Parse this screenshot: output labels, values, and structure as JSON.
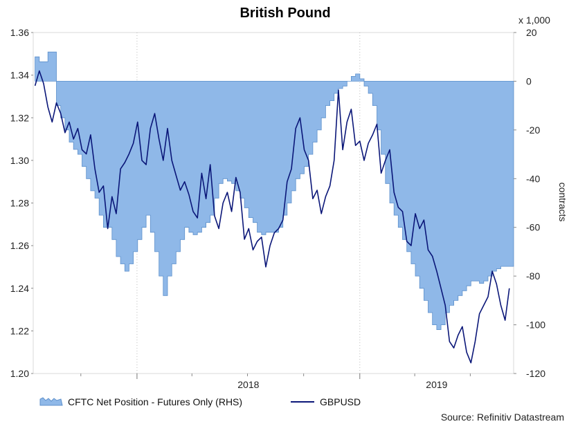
{
  "chart_data": {
    "type": "line",
    "title": "British Pound",
    "source": "Source: Refinitiv Datastream",
    "right_axis_unit": "x 1,000",
    "right_axis_label": "contracts",
    "left_ylim": [
      1.2,
      1.36
    ],
    "right_ylim": [
      -120,
      20
    ],
    "left_ticks": [
      "1.36",
      "1.34",
      "1.32",
      "1.30",
      "1.28",
      "1.26",
      "1.24",
      "1.22",
      "1.20"
    ],
    "right_ticks": [
      "20",
      "0",
      "-20",
      "-40",
      "-60",
      "-80",
      "-100",
      "-120"
    ],
    "x_labels": [
      "2018",
      "2019"
    ],
    "xlim": [
      "2017-07-15",
      "2019-09-10"
    ],
    "x_label_dates": [
      "2018-01-01",
      "2019-01-01"
    ],
    "x_tick_dates": [
      "2017-10-01",
      "2018-04-01",
      "2018-07-01",
      "2018-10-01",
      "2019-04-01",
      "2019-07-01"
    ],
    "grid": true,
    "legend_position": "bottom-left",
    "series": [
      {
        "name": "CFTC Net Position - Futures Only (RHS)",
        "kind": "area",
        "axis": "right",
        "color": "#8FB8E8",
        "edge_color": "#5C8FCB",
        "x": [
          "2017-07-18",
          "2017-07-25",
          "2017-08-01",
          "2017-08-08",
          "2017-08-15",
          "2017-08-22",
          "2017-08-29",
          "2017-09-05",
          "2017-09-12",
          "2017-09-19",
          "2017-09-26",
          "2017-10-03",
          "2017-10-10",
          "2017-10-17",
          "2017-10-24",
          "2017-10-31",
          "2017-11-07",
          "2017-11-14",
          "2017-11-21",
          "2017-11-28",
          "2017-12-05",
          "2017-12-12",
          "2017-12-19",
          "2017-12-26",
          "2018-01-02",
          "2018-01-09",
          "2018-01-16",
          "2018-01-23",
          "2018-01-30",
          "2018-02-06",
          "2018-02-13",
          "2018-02-20",
          "2018-02-27",
          "2018-03-06",
          "2018-03-13",
          "2018-03-20",
          "2018-03-27",
          "2018-04-03",
          "2018-04-10",
          "2018-04-17",
          "2018-04-24",
          "2018-05-01",
          "2018-05-08",
          "2018-05-15",
          "2018-05-22",
          "2018-05-29",
          "2018-06-05",
          "2018-06-12",
          "2018-06-19",
          "2018-06-26",
          "2018-07-03",
          "2018-07-10",
          "2018-07-17",
          "2018-07-24",
          "2018-07-31",
          "2018-08-07",
          "2018-08-14",
          "2018-08-21",
          "2018-08-28",
          "2018-09-04",
          "2018-09-11",
          "2018-09-18",
          "2018-09-25",
          "2018-10-02",
          "2018-10-09",
          "2018-10-16",
          "2018-10-23",
          "2018-10-30",
          "2018-11-06",
          "2018-11-13",
          "2018-11-20",
          "2018-11-27",
          "2018-12-04",
          "2018-12-11",
          "2018-12-18",
          "2018-12-25",
          "2019-01-01",
          "2019-01-08",
          "2019-01-15",
          "2019-01-22",
          "2019-01-29",
          "2019-02-05",
          "2019-02-12",
          "2019-02-19",
          "2019-02-26",
          "2019-03-05",
          "2019-03-12",
          "2019-03-19",
          "2019-03-26",
          "2019-04-02",
          "2019-04-09",
          "2019-04-16",
          "2019-04-23",
          "2019-04-30",
          "2019-05-07",
          "2019-05-14",
          "2019-05-21",
          "2019-05-28",
          "2019-06-04",
          "2019-06-11",
          "2019-06-18",
          "2019-06-25",
          "2019-07-02",
          "2019-07-09",
          "2019-07-16",
          "2019-07-23",
          "2019-07-30",
          "2019-08-06",
          "2019-08-13",
          "2019-08-20",
          "2019-08-27",
          "2019-09-03"
        ],
        "values": [
          10,
          8,
          8,
          12,
          12,
          -10,
          -15,
          -20,
          -25,
          -28,
          -30,
          -35,
          -40,
          -45,
          -48,
          -55,
          -60,
          -60,
          -65,
          -72,
          -75,
          -78,
          -75,
          -70,
          -65,
          -60,
          -55,
          -62,
          -70,
          -80,
          -88,
          -80,
          -75,
          -70,
          -65,
          -60,
          -62,
          -63,
          -62,
          -60,
          -58,
          -55,
          -48,
          -42,
          -40,
          -41,
          -42,
          -45,
          -48,
          -52,
          -56,
          -58,
          -62,
          -63,
          -62,
          -62,
          -62,
          -60,
          -55,
          -50,
          -45,
          -40,
          -38,
          -35,
          -30,
          -25,
          -20,
          -15,
          -10,
          -8,
          -5,
          -3,
          -2,
          0,
          2,
          3,
          1,
          -2,
          -5,
          -10,
          -20,
          -30,
          -42,
          -50,
          -55,
          -60,
          -65,
          -70,
          -75,
          -80,
          -85,
          -90,
          -95,
          -100,
          -102,
          -100,
          -95,
          -92,
          -90,
          -88,
          -86,
          -84,
          -82,
          -82,
          -83,
          -82,
          -80,
          -78,
          -77,
          -76,
          -76,
          -76
        ]
      },
      {
        "name": "GBPUSD",
        "kind": "line",
        "axis": "left",
        "color": "#0A1678",
        "x": [
          "2017-07-18",
          "2017-07-25",
          "2017-08-01",
          "2017-08-08",
          "2017-08-15",
          "2017-08-22",
          "2017-08-29",
          "2017-09-05",
          "2017-09-12",
          "2017-09-19",
          "2017-09-26",
          "2017-10-03",
          "2017-10-10",
          "2017-10-17",
          "2017-10-24",
          "2017-10-31",
          "2017-11-07",
          "2017-11-14",
          "2017-11-21",
          "2017-11-28",
          "2017-12-05",
          "2017-12-12",
          "2017-12-19",
          "2017-12-26",
          "2018-01-02",
          "2018-01-09",
          "2018-01-16",
          "2018-01-23",
          "2018-01-30",
          "2018-02-06",
          "2018-02-13",
          "2018-02-20",
          "2018-02-27",
          "2018-03-06",
          "2018-03-13",
          "2018-03-20",
          "2018-03-27",
          "2018-04-03",
          "2018-04-10",
          "2018-04-17",
          "2018-04-24",
          "2018-05-01",
          "2018-05-08",
          "2018-05-15",
          "2018-05-22",
          "2018-05-29",
          "2018-06-05",
          "2018-06-12",
          "2018-06-19",
          "2018-06-26",
          "2018-07-03",
          "2018-07-10",
          "2018-07-17",
          "2018-07-24",
          "2018-07-31",
          "2018-08-07",
          "2018-08-14",
          "2018-08-21",
          "2018-08-28",
          "2018-09-04",
          "2018-09-11",
          "2018-09-18",
          "2018-09-25",
          "2018-10-02",
          "2018-10-09",
          "2018-10-16",
          "2018-10-23",
          "2018-10-30",
          "2018-11-06",
          "2018-11-13",
          "2018-11-20",
          "2018-11-27",
          "2018-12-04",
          "2018-12-11",
          "2018-12-18",
          "2018-12-25",
          "2019-01-01",
          "2019-01-08",
          "2019-01-15",
          "2019-01-22",
          "2019-01-29",
          "2019-02-05",
          "2019-02-12",
          "2019-02-19",
          "2019-02-26",
          "2019-03-05",
          "2019-03-12",
          "2019-03-19",
          "2019-03-26",
          "2019-04-02",
          "2019-04-09",
          "2019-04-16",
          "2019-04-23",
          "2019-04-30",
          "2019-05-07",
          "2019-05-14",
          "2019-05-21",
          "2019-05-28",
          "2019-06-04",
          "2019-06-11",
          "2019-06-18",
          "2019-06-25",
          "2019-07-02",
          "2019-07-09",
          "2019-07-16",
          "2019-07-23",
          "2019-07-30",
          "2019-08-06",
          "2019-08-13",
          "2019-08-20",
          "2019-08-27",
          "2019-09-03"
        ],
        "values": [
          1.335,
          1.342,
          1.336,
          1.325,
          1.318,
          1.327,
          1.322,
          1.313,
          1.318,
          1.31,
          1.315,
          1.305,
          1.303,
          1.312,
          1.296,
          1.285,
          1.288,
          1.268,
          1.283,
          1.275,
          1.296,
          1.299,
          1.303,
          1.308,
          1.318,
          1.3,
          1.298,
          1.315,
          1.322,
          1.31,
          1.3,
          1.315,
          1.3,
          1.293,
          1.286,
          1.29,
          1.284,
          1.276,
          1.273,
          1.294,
          1.282,
          1.298,
          1.274,
          1.268,
          1.28,
          1.285,
          1.276,
          1.292,
          1.285,
          1.263,
          1.268,
          1.258,
          1.262,
          1.264,
          1.25,
          1.26,
          1.266,
          1.268,
          1.272,
          1.29,
          1.296,
          1.315,
          1.32,
          1.305,
          1.3,
          1.282,
          1.286,
          1.275,
          1.283,
          1.288,
          1.3,
          1.333,
          1.305,
          1.318,
          1.324,
          1.307,
          1.309,
          1.3,
          1.308,
          1.312,
          1.317,
          1.294,
          1.3,
          1.305,
          1.285,
          1.278,
          1.276,
          1.262,
          1.26,
          1.275,
          1.268,
          1.272,
          1.258,
          1.255,
          1.248,
          1.24,
          1.232,
          1.215,
          1.212,
          1.218,
          1.222,
          1.21,
          1.205,
          1.215,
          1.228,
          1.232,
          1.236,
          1.248,
          1.242,
          1.232,
          1.225,
          1.24
        ]
      }
    ]
  }
}
